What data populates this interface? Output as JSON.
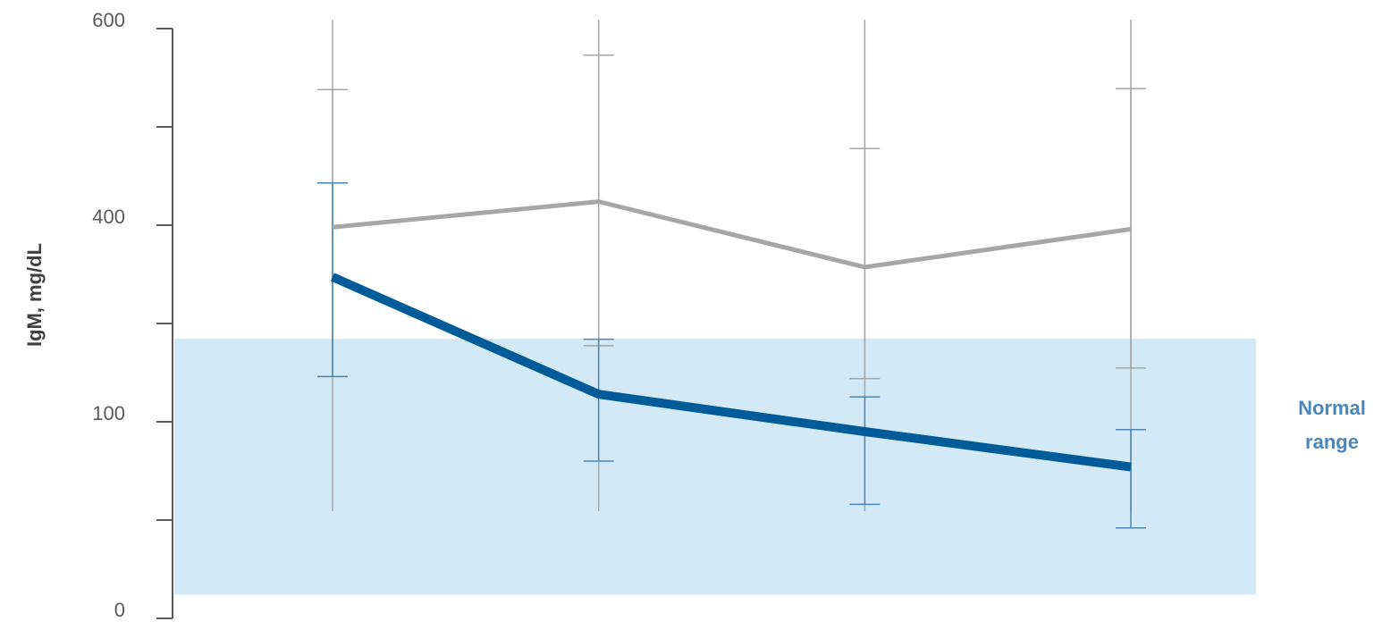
{
  "chart_data": {
    "type": "line",
    "y_label": "IgM, mg/dL",
    "band": {
      "label": "Normal range",
      "low": 12,
      "high": 227,
      "color": "#d3eaf6"
    },
    "categories": [
      null,
      null,
      null,
      null
    ],
    "ylim": [
      0,
      600
    ],
    "yticks": [
      {
        "value": 0,
        "label": "0"
      },
      {
        "value": 50,
        "label": null
      },
      {
        "value": 100,
        "label": "100"
      },
      {
        "value": 250,
        "label": null
      },
      {
        "value": 400,
        "label": "400"
      },
      {
        "value": 500,
        "label": null
      },
      {
        "value": 600,
        "label": "600"
      }
    ],
    "series": [
      {
        "color": "#a6a6a6",
        "width": 5,
        "values": [
          397,
          424,
          336,
          394
        ],
        "err_low": [
          169,
          216,
          166,
          182
        ],
        "err_high": [
          538,
          573,
          478,
          539
        ]
      },
      {
        "color": "#005c99",
        "width": 10,
        "err_color": "#4a86b8",
        "values": [
          321,
          142,
          95,
          77
        ],
        "err_low": [
          169,
          80,
          58,
          46
        ],
        "err_high": [
          443,
          226,
          138,
          96
        ]
      }
    ]
  }
}
